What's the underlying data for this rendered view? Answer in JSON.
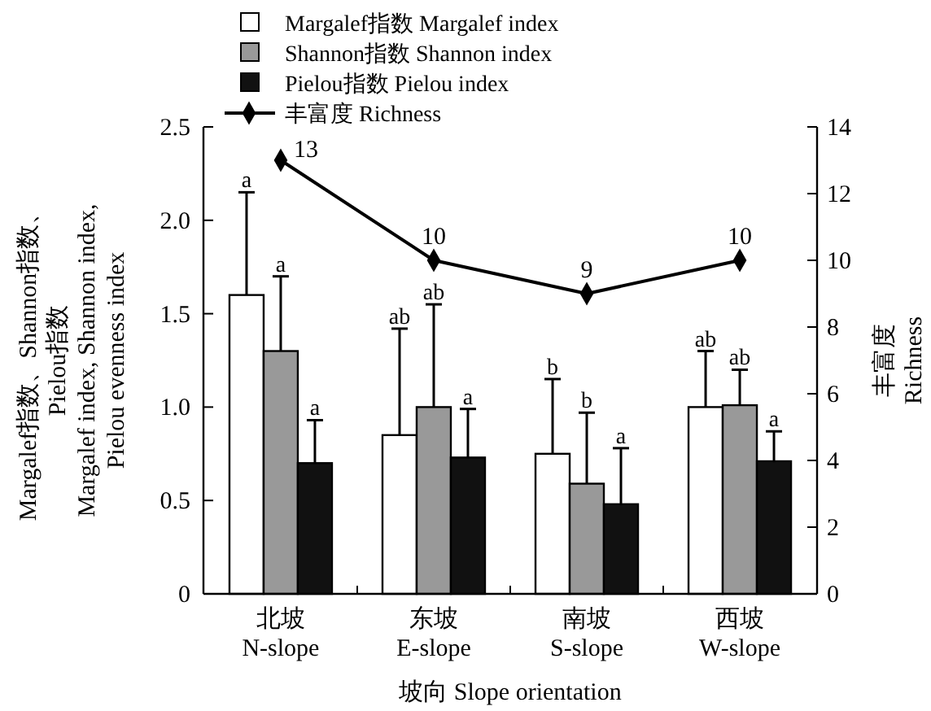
{
  "chart_data": {
    "type": "bar",
    "categories": [
      "北坡\nN-slope",
      "东坡\nE-slope",
      "南坡\nS-slope",
      "西坡\nW-slope"
    ],
    "series": [
      {
        "name": "Margalef指数 Margalef index",
        "color": "#ffffff",
        "values": [
          1.6,
          0.85,
          0.75,
          1.0
        ],
        "errors": [
          [
            1.6,
            2.15
          ],
          [
            0.85,
            1.42
          ],
          [
            0.75,
            1.15
          ],
          [
            1.0,
            1.3
          ]
        ]
      },
      {
        "name": "Shannon指数 Shannon index",
        "color": "#999999",
        "values": [
          1.3,
          1.0,
          0.59,
          1.01
        ],
        "errors": [
          [
            1.3,
            1.7
          ],
          [
            1.0,
            1.55
          ],
          [
            0.59,
            0.97
          ],
          [
            1.01,
            1.2
          ]
        ]
      },
      {
        "name": "Pielou指数 Pielou index",
        "color": "#111111",
        "values": [
          0.7,
          0.73,
          0.48,
          0.71
        ],
        "errors": [
          [
            0.7,
            0.93
          ],
          [
            0.73,
            0.99
          ],
          [
            0.48,
            0.78
          ],
          [
            0.71,
            0.87
          ]
        ]
      },
      {
        "name": "丰富度 Richness",
        "type": "line",
        "axis": "y2",
        "color": "#000000",
        "values": [
          13,
          10,
          9,
          10
        ],
        "marker": "diamond",
        "data_labels": true
      }
    ],
    "xlabel": "坡向 Slope orientation",
    "ylabel": "Margalef指数、Shannon指数、\nPielou指数\nMargalef index, Shannon index,\nPielou evenness index",
    "y2label": "丰富度\nRichness",
    "ylim": [
      0,
      2.5
    ],
    "yticks": [
      0,
      0.5,
      {
        "value": 1,
        "label": "1.0"
      },
      1.5,
      {
        "value": 2,
        "label": "2.0"
      },
      2.5
    ],
    "y2lim": [
      0,
      14
    ],
    "y2ticks": [
      0,
      2,
      4,
      6,
      8,
      10,
      12,
      14
    ],
    "legend": "top",
    "grid": false,
    "annotations": [
      "a",
      "a",
      "a",
      "ab",
      "ab",
      "a",
      "b",
      "b",
      "a",
      "ab",
      "ab",
      "a"
    ]
  }
}
